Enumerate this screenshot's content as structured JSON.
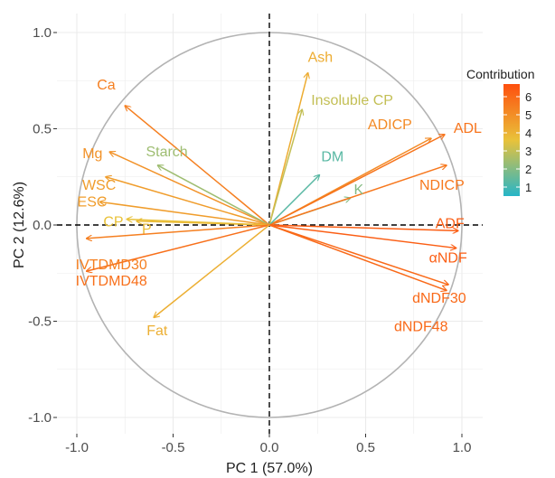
{
  "chart_data": {
    "type": "pca-variable-correlation-circle",
    "xlabel": "PC 1 (57.0%)",
    "ylabel": "PC 2 (12.6%)",
    "xlim": [
      -1.0,
      1.0
    ],
    "ylim": [
      -1.0,
      1.0
    ],
    "x_ticks": [
      "-1.0",
      "-0.5",
      "0.0",
      "0.5",
      "1.0"
    ],
    "y_ticks": [
      "-1.0",
      "-0.5",
      "0.0",
      "0.5",
      "1.0"
    ],
    "grid": true,
    "unit_circle": true,
    "legend": {
      "title": "Contribution",
      "position": "right",
      "ticks": [
        "6",
        "5",
        "4",
        "3",
        "2",
        "1"
      ],
      "min": 0.5,
      "max": 6.7,
      "colors": [
        "#26b5c8",
        "#e9c23a",
        "#fe4f0e"
      ]
    },
    "variables": [
      {
        "name": "Ash",
        "x": 0.2,
        "y": 0.79,
        "contribution": 4.2
      },
      {
        "name": "Insoluble CP",
        "x": 0.17,
        "y": 0.6,
        "contribution": 3.0
      },
      {
        "name": "ADICP",
        "x": 0.84,
        "y": 0.45,
        "contribution": 5.1
      },
      {
        "name": "ADL",
        "x": 0.91,
        "y": 0.47,
        "contribution": 5.7
      },
      {
        "name": "DM",
        "x": 0.26,
        "y": 0.26,
        "contribution": 1.3
      },
      {
        "name": "K",
        "x": 0.42,
        "y": 0.14,
        "contribution": 2.0
      },
      {
        "name": "NDICP",
        "x": 0.92,
        "y": 0.31,
        "contribution": 5.6
      },
      {
        "name": "ADF",
        "x": 0.98,
        "y": -0.03,
        "contribution": 6.3
      },
      {
        "name": "αNDF",
        "x": 0.97,
        "y": -0.12,
        "contribution": 6.3
      },
      {
        "name": "dNDF30",
        "x": 0.93,
        "y": -0.31,
        "contribution": 6.0
      },
      {
        "name": "dNDF48",
        "x": 0.92,
        "y": -0.34,
        "contribution": 6.0
      },
      {
        "name": "Ca",
        "x": -0.75,
        "y": 0.62,
        "contribution": 5.4
      },
      {
        "name": "Mg",
        "x": -0.83,
        "y": 0.38,
        "contribution": 4.9
      },
      {
        "name": "Starch",
        "x": -0.58,
        "y": 0.31,
        "contribution": 2.4
      },
      {
        "name": "WSC",
        "x": -0.85,
        "y": 0.25,
        "contribution": 4.6
      },
      {
        "name": "ESC",
        "x": -0.88,
        "y": 0.12,
        "contribution": 4.6
      },
      {
        "name": "CP",
        "x": -0.74,
        "y": 0.03,
        "contribution": 3.6
      },
      {
        "name": "P",
        "x": -0.69,
        "y": 0.02,
        "contribution": 3.8
      },
      {
        "name": "IVTDMD30",
        "x": -0.95,
        "y": -0.07,
        "contribution": 5.4
      },
      {
        "name": "IVTDMD48",
        "x": -0.95,
        "y": -0.24,
        "contribution": 5.8
      },
      {
        "name": "Fat",
        "x": -0.6,
        "y": -0.48,
        "contribution": 4.1
      }
    ]
  }
}
